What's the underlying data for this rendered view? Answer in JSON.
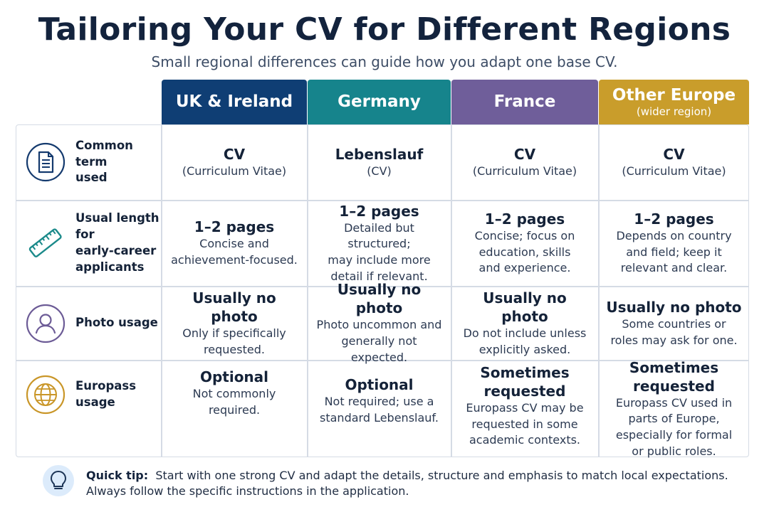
{
  "title": "Tailoring Your CV for Different Regions",
  "subtitle": "Small regional differences can guide how you adapt one base CV.",
  "columns": [
    {
      "name": "UK & Ireland",
      "sub": "",
      "color": "#0f3e74"
    },
    {
      "name": "Germany",
      "sub": "",
      "color": "#16848c"
    },
    {
      "name": "France",
      "sub": "",
      "color": "#6f5e9a"
    },
    {
      "name": "Other Europe",
      "sub": "(wider region)",
      "color": "#c99d2b"
    }
  ],
  "rows": [
    {
      "label_lines": [
        "Common term",
        "used"
      ],
      "icon": "document-icon",
      "icon_color": "#143a6e",
      "cells": [
        {
          "main": "CV",
          "detail": [
            "(Curriculum Vitae)"
          ]
        },
        {
          "main": "Lebenslauf",
          "detail": [
            "(CV)"
          ]
        },
        {
          "main": "CV",
          "detail": [
            "(Curriculum Vitae)"
          ]
        },
        {
          "main": "CV",
          "detail": [
            "(Curriculum Vitae)"
          ]
        }
      ]
    },
    {
      "label_lines": [
        "Usual length for",
        "early-career",
        "applicants"
      ],
      "icon": "ruler-icon",
      "icon_color": "#1b8a8a",
      "cells": [
        {
          "main": "1–2 pages",
          "detail": [
            "Concise and",
            "achievement-focused."
          ]
        },
        {
          "main": "1–2 pages",
          "detail": [
            "Detailed but structured;",
            "may include more",
            "detail if relevant."
          ]
        },
        {
          "main": "1–2 pages",
          "detail": [
            "Concise; focus on",
            "education, skills",
            "and experience."
          ]
        },
        {
          "main": "1–2 pages",
          "detail": [
            "Depends on country",
            "and field; keep it",
            "relevant and clear."
          ]
        }
      ]
    },
    {
      "label_lines": [
        "Photo usage"
      ],
      "icon": "person-icon",
      "icon_color": "#6c5b96",
      "cells": [
        {
          "main": "Usually no photo",
          "detail": [
            "Only if specifically",
            "requested."
          ]
        },
        {
          "main": "Usually no photo",
          "detail": [
            "Photo uncommon and",
            "generally not expected."
          ]
        },
        {
          "main": "Usually no photo",
          "detail": [
            "Do not include unless",
            "explicitly asked."
          ]
        },
        {
          "main": "Usually no photo",
          "detail": [
            "Some countries or",
            "roles may ask for one."
          ]
        }
      ]
    },
    {
      "label_lines": [
        "Europass",
        "usage"
      ],
      "icon": "globe-icon",
      "icon_color": "#c99628",
      "cells": [
        {
          "main": "Optional",
          "detail": [
            "Not commonly required."
          ]
        },
        {
          "main": "Optional",
          "detail": [
            "Not required; use a",
            "standard Lebenslauf."
          ]
        },
        {
          "main": "Sometimes requested",
          "detail": [
            "Europass CV may be",
            "requested in some",
            "academic contexts."
          ]
        },
        {
          "main": "Sometimes requested",
          "detail": [
            "Europass CV used in",
            "parts of Europe,",
            "especially for formal",
            "or public roles."
          ]
        }
      ]
    }
  ],
  "tip": {
    "label": "Quick tip:",
    "line1": "Start with one strong CV and adapt the details, structure and emphasis to match local expectations.",
    "line2": "Always follow the specific instructions in the application.",
    "icon": "lightbulb-icon"
  }
}
